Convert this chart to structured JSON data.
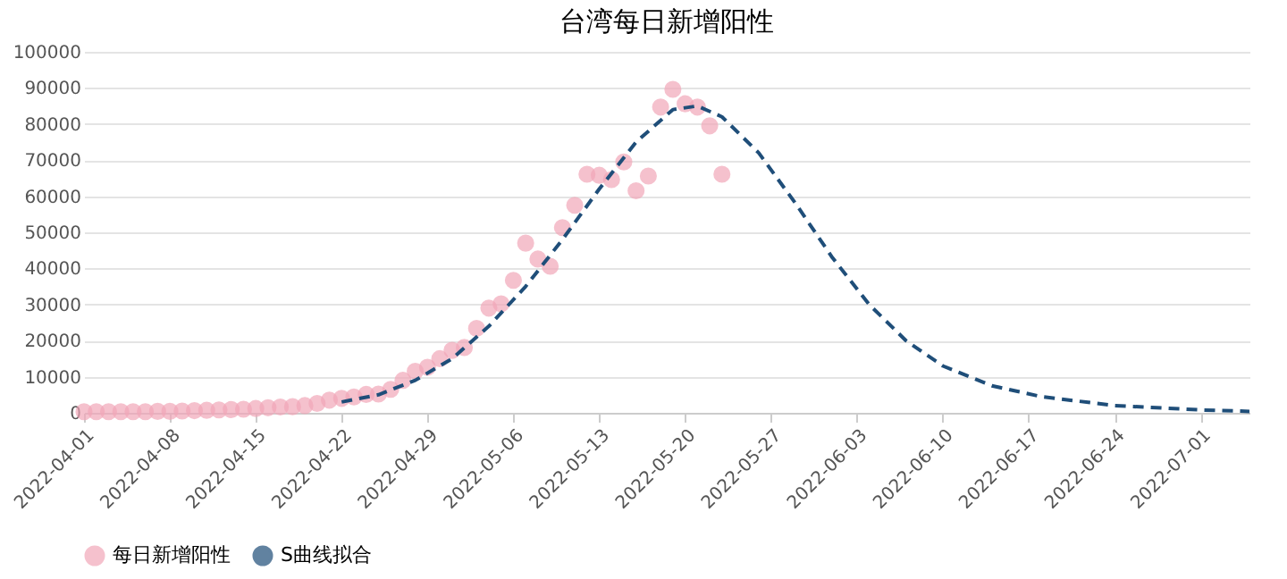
{
  "chart_data": {
    "type": "scatter",
    "title": "台湾每日新增阳性",
    "x": [
      "2022-04-01",
      "2022-04-02",
      "2022-04-03",
      "2022-04-04",
      "2022-04-05",
      "2022-04-06",
      "2022-04-07",
      "2022-04-08",
      "2022-04-09",
      "2022-04-10",
      "2022-04-11",
      "2022-04-12",
      "2022-04-13",
      "2022-04-14",
      "2022-04-15",
      "2022-04-16",
      "2022-04-17",
      "2022-04-18",
      "2022-04-19",
      "2022-04-20",
      "2022-04-21",
      "2022-04-22",
      "2022-04-23",
      "2022-04-24",
      "2022-04-25",
      "2022-04-26",
      "2022-04-27",
      "2022-04-28",
      "2022-04-29",
      "2022-04-30",
      "2022-05-01",
      "2022-05-02",
      "2022-05-03",
      "2022-05-04",
      "2022-05-05",
      "2022-05-06",
      "2022-05-07",
      "2022-05-08",
      "2022-05-09",
      "2022-05-10",
      "2022-05-11",
      "2022-05-12",
      "2022-05-13",
      "2022-05-14",
      "2022-05-15",
      "2022-05-16",
      "2022-05-17",
      "2022-05-18",
      "2022-05-19",
      "2022-05-20",
      "2022-05-21",
      "2022-05-22",
      "2022-05-23"
    ],
    "series": [
      {
        "name": "每日新增阳性",
        "color": "#f2a7b9",
        "marker": "circle",
        "values": [
          300,
          300,
          300,
          300,
          300,
          300,
          400,
          400,
          500,
          600,
          700,
          800,
          900,
          1000,
          1200,
          1400,
          1600,
          1700,
          2000,
          2600,
          3500,
          4000,
          4400,
          5100,
          5200,
          6500,
          9000,
          11500,
          12600,
          15000,
          17300,
          18100,
          23400,
          29000,
          30200,
          36700,
          47000,
          42600,
          40600,
          51300,
          57500,
          66100,
          65800,
          64600,
          69500,
          61500,
          65600,
          84700,
          89600,
          85600,
          84700,
          79500,
          66100
        ]
      },
      {
        "name": "S曲线拟合",
        "type": "line",
        "color": "#1f4e79",
        "line_style": "dashed",
        "x": [
          "2022-04-22",
          "2022-04-25",
          "2022-04-28",
          "2022-05-01",
          "2022-05-04",
          "2022-05-07",
          "2022-05-10",
          "2022-05-13",
          "2022-05-16",
          "2022-05-19",
          "2022-05-21",
          "2022-05-23",
          "2022-05-26",
          "2022-05-29",
          "2022-06-01",
          "2022-06-04",
          "2022-06-07",
          "2022-06-10",
          "2022-06-14",
          "2022-06-18",
          "2022-06-24",
          "2022-07-01",
          "2022-07-05"
        ],
        "values": [
          3000,
          5000,
          9000,
          15000,
          24000,
          35000,
          48000,
          62000,
          75000,
          84000,
          85000,
          82000,
          72000,
          58000,
          43000,
          30000,
          20000,
          13000,
          7500,
          4500,
          2000,
          800,
          400
        ]
      }
    ],
    "xlim": [
      "2022-04-01",
      "2022-07-05"
    ],
    "xticks": [
      "2022-04-01",
      "2022-04-08",
      "2022-04-15",
      "2022-04-22",
      "2022-04-29",
      "2022-05-06",
      "2022-05-13",
      "2022-05-20",
      "2022-05-27",
      "2022-06-03",
      "2022-06-10",
      "2022-06-17",
      "2022-06-24",
      "2022-07-01"
    ],
    "ylim": [
      0,
      100000
    ],
    "yticks": [
      0,
      10000,
      20000,
      30000,
      40000,
      50000,
      60000,
      70000,
      80000,
      90000,
      100000
    ],
    "grid": "y",
    "legend": "bottom"
  }
}
